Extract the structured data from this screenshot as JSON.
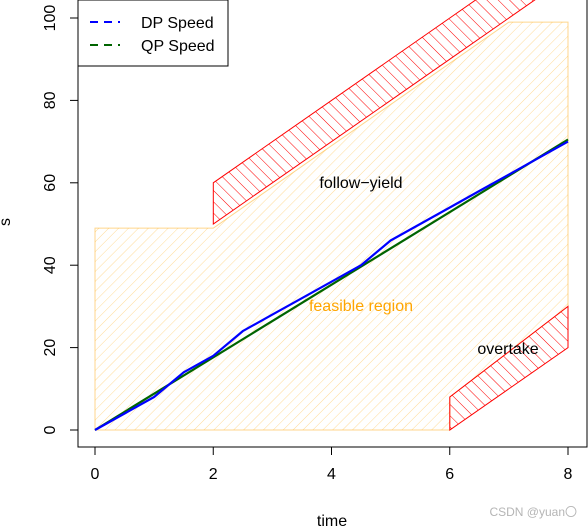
{
  "chart_data": {
    "type": "line",
    "title": "",
    "xlabel": "time",
    "ylabel": "s",
    "xlim": [
      0,
      8
    ],
    "ylim": [
      0,
      100
    ],
    "x_ticks": [
      "0",
      "2",
      "4",
      "6",
      "8"
    ],
    "y_ticks": [
      "0",
      "20",
      "40",
      "60",
      "80",
      "100"
    ],
    "grid": false,
    "legend_position": "top-left",
    "series": [
      {
        "name": "DP Speed",
        "color": "#0000ff",
        "line_style": "dashed",
        "x": [
          0,
          0.5,
          1,
          1.5,
          2,
          2.5,
          3,
          3.5,
          4,
          4.5,
          5,
          5.5,
          6,
          6.5,
          7,
          7.5,
          8
        ],
        "values": [
          0,
          4,
          8,
          14,
          18,
          24,
          28,
          32,
          36,
          40,
          46,
          50,
          54,
          58,
          62,
          66,
          70
        ]
      },
      {
        "name": "QP Speed",
        "color": "#006400",
        "line_style": "dashed",
        "x": [
          0,
          8
        ],
        "values": [
          0,
          70.5
        ]
      }
    ],
    "regions": [
      {
        "name": "feasible region",
        "label": "feasible region",
        "label_color": "#ffa500",
        "hatch_color": "#ffa500",
        "polygon": [
          [
            0,
            0
          ],
          [
            6,
            0
          ],
          [
            6,
            8
          ],
          [
            8,
            30
          ],
          [
            8,
            99
          ],
          [
            7,
            99
          ],
          [
            2,
            49
          ],
          [
            0,
            49
          ]
        ]
      },
      {
        "name": "follow-yield",
        "label": "follow−yield",
        "label_color": "#000000",
        "hatch_color": "#ff0000",
        "polygon": [
          [
            2,
            50
          ],
          [
            2,
            60
          ],
          [
            6,
            100
          ],
          [
            8,
            120
          ],
          [
            8,
            110
          ],
          [
            6,
            90
          ],
          [
            2,
            50
          ]
        ]
      },
      {
        "name": "overtake",
        "label": "overtake",
        "label_color": "#000000",
        "hatch_color": "#ff0000",
        "polygon": [
          [
            6,
            0
          ],
          [
            6,
            8
          ],
          [
            8,
            30
          ],
          [
            8,
            20
          ],
          [
            6,
            0
          ]
        ]
      }
    ]
  },
  "watermark": "CSDN @yuan〇"
}
